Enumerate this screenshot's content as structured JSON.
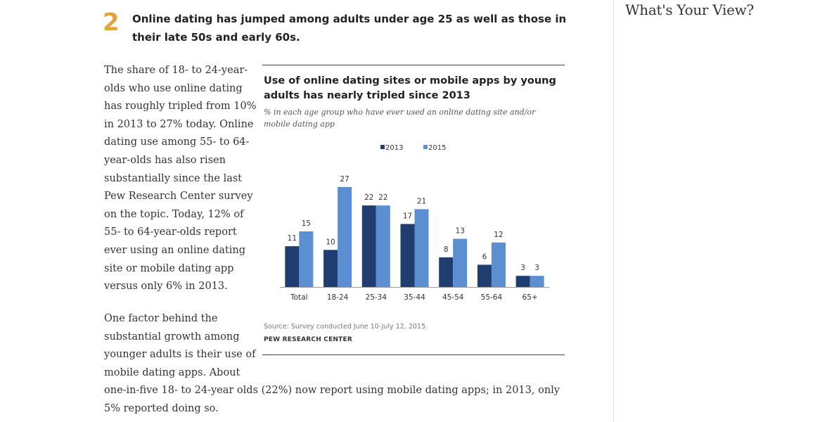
{
  "article": {
    "point_number": "2",
    "headline": "Online dating has jumped among adults under age 25 as well as those in their late 50s and early 60s.",
    "paragraph1_lines": [
      "The share of 18- to 24-year-",
      "olds who use online dating",
      "has roughly tripled from 10%",
      "in 2013 to 27% today. Online",
      "dating use among 55- to 64-",
      "year-olds has also risen",
      "substantially since the last",
      "Pew Research Center survey",
      "on the topic. Today, 12% of",
      "55- to 64-year-olds report",
      "ever using an online dating",
      "site or mobile dating app",
      "versus only 6% in 2013."
    ],
    "paragraph2_lines": [
      "One factor behind the",
      "substantial growth among",
      "younger adults is their use of",
      "mobile dating apps. About",
      "one-in-five 18- to 24-year olds (22%) now report using mobile dating apps; in 2013, only",
      "5% reported doing so."
    ]
  },
  "sidebar": {
    "title": "What's Your View?"
  },
  "colors": {
    "accent_number": "#e1a53a",
    "series_2013": "#1f3d6e",
    "series_2015": "#5b8fd1"
  },
  "chart_data": {
    "type": "bar",
    "title": "Use of online dating sites or mobile apps by young adults has nearly tripled since 2013",
    "subtitle": "% in each age group who have ever used an online dating site and/or mobile dating app",
    "categories": [
      "Total",
      "18-24",
      "25-34",
      "35-44",
      "45-54",
      "55-64",
      "65+"
    ],
    "series": [
      {
        "name": "2013",
        "color": "#1f3d6e",
        "values": [
          11,
          10,
          22,
          17,
          8,
          6,
          3
        ]
      },
      {
        "name": "2015",
        "color": "#5b8fd1",
        "values": [
          15,
          27,
          22,
          21,
          13,
          12,
          3
        ]
      }
    ],
    "ylim": [
      0,
      30
    ],
    "xlabel": "",
    "ylabel": "",
    "legend_position": "top-center",
    "grid": false,
    "source": "Source: Survey conducted June 10-July 12, 2015.",
    "credit": "PEW RESEARCH CENTER"
  }
}
